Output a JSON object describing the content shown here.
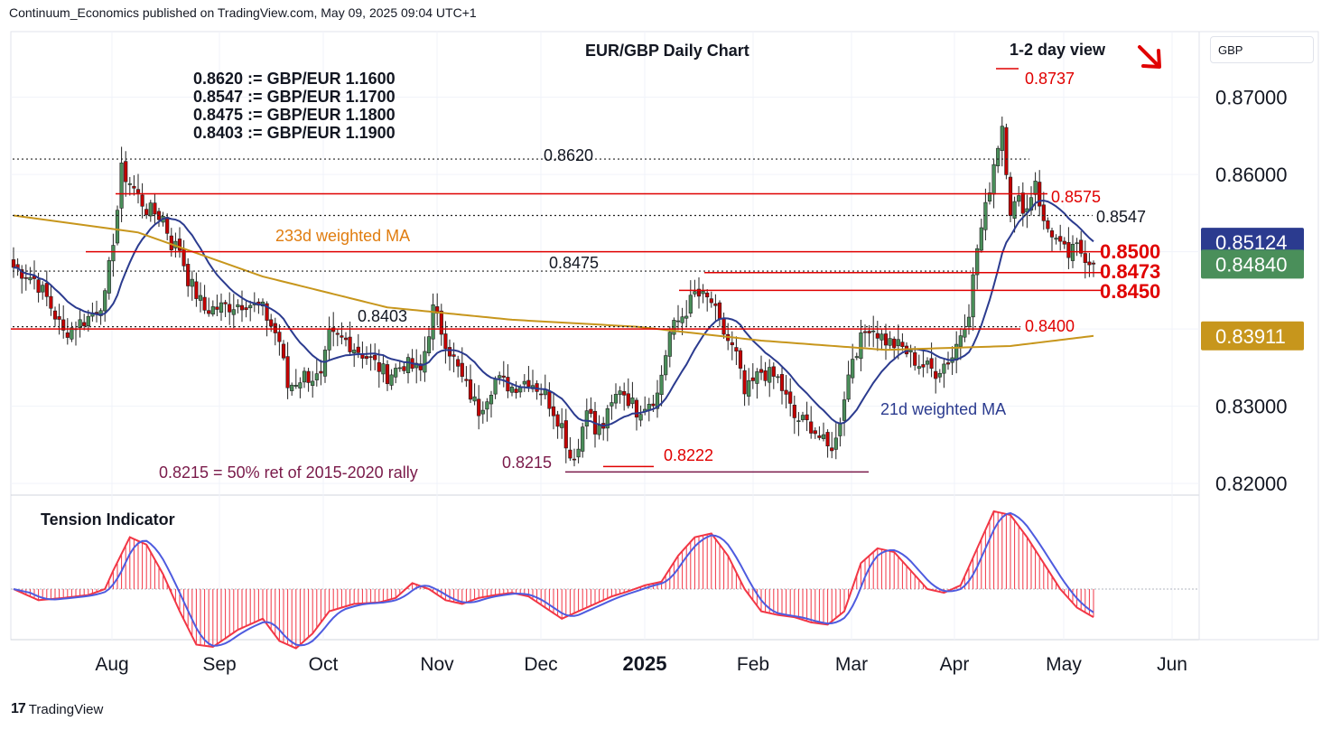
{
  "header": {
    "published": "Continuum_Economics published on TradingView.com, May 09, 2025 09:04 UTC+1"
  },
  "footer": {
    "brand": "TradingView",
    "logo": "tv-logo-icon"
  },
  "currency_label": "GBP",
  "colors": {
    "up": "#4a8f5a",
    "down": "#c40000",
    "ma21": "#2b3b8f",
    "ma233": "#c7961c",
    "red": "#e00000",
    "maroon": "#7a1a4a",
    "tension_red": "#f23645",
    "tension_blue": "#4e5bdf"
  },
  "chart_data": {
    "type": "candlestick",
    "title": "EUR/GBP Daily Chart",
    "view_label": "1-2 day view",
    "view_icon": "down-right-arrow-icon",
    "x_ticks": [
      "Aug",
      "Sep",
      "Oct",
      "Nov",
      "Dec",
      "2025",
      "Feb",
      "Mar",
      "Apr",
      "May",
      "Jun"
    ],
    "y_ticks": [
      "0.87000",
      "0.86000",
      "0.85000",
      "0.84000",
      "0.83000",
      "0.82000"
    ],
    "ylim": [
      0.8185,
      0.8785
    ],
    "price_tags": [
      {
        "label": "0.85124",
        "value": 0.85124,
        "color": "#2b3b8f"
      },
      {
        "label": "0.84840",
        "value": 0.8484,
        "color": "#4a8f5a"
      },
      {
        "label": "0.83911",
        "value": 0.83911,
        "color": "#c7961c"
      }
    ],
    "conversions": [
      "0.8620 := GBP/EUR 1.1600",
      "0.8547 := GBP/EUR 1.1700",
      "0.8475 := GBP/EUR 1.1800",
      "0.8403 := GBP/EUR 1.1900"
    ],
    "levels": [
      {
        "label": "0.8620",
        "value": 0.862,
        "style": "dotted"
      },
      {
        "label": "0.8547",
        "value": 0.8547,
        "style": "dotted"
      },
      {
        "label": "0.8475",
        "value": 0.8475,
        "style": "dotted"
      },
      {
        "label": "0.8403",
        "value": 0.8403,
        "style": "dotted"
      },
      {
        "label": "0.8575",
        "value": 0.8575,
        "style": "red"
      },
      {
        "label": "0.8500",
        "value": 0.85,
        "style": "red"
      },
      {
        "label": "0.8473",
        "value": 0.8473,
        "style": "red"
      },
      {
        "label": "0.8450",
        "value": 0.845,
        "style": "red"
      },
      {
        "label": "0.8400",
        "value": 0.84,
        "style": "red"
      },
      {
        "label": "0.8737",
        "value": 0.8737,
        "style": "red"
      },
      {
        "label": "0.8222",
        "value": 0.8222,
        "style": "red"
      },
      {
        "label": "0.8215",
        "value": 0.8215,
        "style": "maroon"
      }
    ],
    "annotations": {
      "ma233": "233d weighted MA",
      "ma21": "21d weighted MA",
      "retracement": "0.8215 = 50% ret of 2015-2020 rally"
    },
    "anchors": [
      [
        0,
        0.848
      ],
      [
        5,
        0.8465
      ],
      [
        8,
        0.844
      ],
      [
        12,
        0.8395
      ],
      [
        18,
        0.8415
      ],
      [
        22,
        0.844
      ],
      [
        25,
        0.8555
      ],
      [
        26,
        0.8605
      ],
      [
        28,
        0.859
      ],
      [
        32,
        0.8555
      ],
      [
        36,
        0.8545
      ],
      [
        38,
        0.851
      ],
      [
        40,
        0.8505
      ],
      [
        42,
        0.8465
      ],
      [
        46,
        0.8425
      ],
      [
        52,
        0.843
      ],
      [
        56,
        0.8435
      ],
      [
        60,
        0.8425
      ],
      [
        64,
        0.8385
      ],
      [
        66,
        0.8325
      ],
      [
        70,
        0.834
      ],
      [
        74,
        0.8335
      ],
      [
        76,
        0.839
      ],
      [
        80,
        0.8385
      ],
      [
        86,
        0.836
      ],
      [
        90,
        0.834
      ],
      [
        94,
        0.8355
      ],
      [
        98,
        0.8345
      ],
      [
        101,
        0.8425
      ],
      [
        104,
        0.8385
      ],
      [
        108,
        0.8335
      ],
      [
        112,
        0.8295
      ],
      [
        116,
        0.8335
      ],
      [
        120,
        0.8325
      ],
      [
        124,
        0.8335
      ],
      [
        128,
        0.8315
      ],
      [
        132,
        0.8275
      ],
      [
        134,
        0.8235
      ],
      [
        136,
        0.8245
      ],
      [
        138,
        0.8305
      ],
      [
        140,
        0.8265
      ],
      [
        142,
        0.8275
      ],
      [
        146,
        0.8325
      ],
      [
        150,
        0.8295
      ],
      [
        155,
        0.8315
      ],
      [
        158,
        0.8395
      ],
      [
        162,
        0.8425
      ],
      [
        164,
        0.8445
      ],
      [
        168,
        0.8435
      ],
      [
        170,
        0.8405
      ],
      [
        174,
        0.8365
      ],
      [
        176,
        0.8315
      ],
      [
        180,
        0.8345
      ],
      [
        184,
        0.8335
      ],
      [
        188,
        0.8285
      ],
      [
        192,
        0.8275
      ],
      [
        196,
        0.8245
      ],
      [
        198,
        0.8255
      ],
      [
        200,
        0.8315
      ],
      [
        202,
        0.8365
      ],
      [
        206,
        0.8405
      ],
      [
        210,
        0.8385
      ],
      [
        214,
        0.8375
      ],
      [
        218,
        0.8355
      ],
      [
        222,
        0.8345
      ],
      [
        226,
        0.8365
      ],
      [
        230,
        0.8425
      ],
      [
        232,
        0.8505
      ],
      [
        234,
        0.8555
      ],
      [
        236,
        0.8615
      ],
      [
        238,
        0.8665
      ],
      [
        240,
        0.8555
      ],
      [
        242,
        0.8565
      ],
      [
        244,
        0.8555
      ],
      [
        246,
        0.8595
      ],
      [
        248,
        0.8535
      ],
      [
        250,
        0.8525
      ],
      [
        252,
        0.8505
      ],
      [
        254,
        0.8495
      ],
      [
        256,
        0.8505
      ],
      [
        258,
        0.8495
      ],
      [
        260,
        0.8484
      ]
    ],
    "tension_indicator": {
      "label": "Tension Indicator",
      "anchors": [
        [
          0,
          0
        ],
        [
          6,
          -0.15
        ],
        [
          12,
          -0.12
        ],
        [
          18,
          -0.08
        ],
        [
          22,
          0.0
        ],
        [
          24,
          0.25
        ],
        [
          28,
          0.7
        ],
        [
          32,
          0.6
        ],
        [
          36,
          0.2
        ],
        [
          40,
          -0.3
        ],
        [
          44,
          -0.75
        ],
        [
          48,
          -0.78
        ],
        [
          54,
          -0.55
        ],
        [
          60,
          -0.4
        ],
        [
          64,
          -0.7
        ],
        [
          68,
          -0.8
        ],
        [
          72,
          -0.6
        ],
        [
          76,
          -0.3
        ],
        [
          82,
          -0.2
        ],
        [
          88,
          -0.18
        ],
        [
          92,
          -0.12
        ],
        [
          96,
          0.08
        ],
        [
          100,
          0.0
        ],
        [
          104,
          -0.15
        ],
        [
          108,
          -0.2
        ],
        [
          112,
          -0.12
        ],
        [
          116,
          -0.08
        ],
        [
          120,
          -0.05
        ],
        [
          124,
          -0.1
        ],
        [
          128,
          -0.25
        ],
        [
          132,
          -0.4
        ],
        [
          136,
          -0.3
        ],
        [
          140,
          -0.2
        ],
        [
          144,
          -0.1
        ],
        [
          148,
          -0.03
        ],
        [
          152,
          0.05
        ],
        [
          156,
          0.1
        ],
        [
          160,
          0.45
        ],
        [
          164,
          0.7
        ],
        [
          168,
          0.75
        ],
        [
          172,
          0.45
        ],
        [
          176,
          0.0
        ],
        [
          180,
          -0.3
        ],
        [
          184,
          -0.35
        ],
        [
          188,
          -0.38
        ],
        [
          192,
          -0.45
        ],
        [
          196,
          -0.48
        ],
        [
          200,
          -0.3
        ],
        [
          204,
          0.35
        ],
        [
          208,
          0.55
        ],
        [
          212,
          0.5
        ],
        [
          216,
          0.25
        ],
        [
          220,
          0.0
        ],
        [
          224,
          -0.05
        ],
        [
          228,
          0.05
        ],
        [
          232,
          0.55
        ],
        [
          236,
          1.05
        ],
        [
          240,
          1.0
        ],
        [
          244,
          0.7
        ],
        [
          248,
          0.35
        ],
        [
          252,
          0.0
        ],
        [
          256,
          -0.25
        ],
        [
          260,
          -0.38
        ]
      ]
    }
  }
}
